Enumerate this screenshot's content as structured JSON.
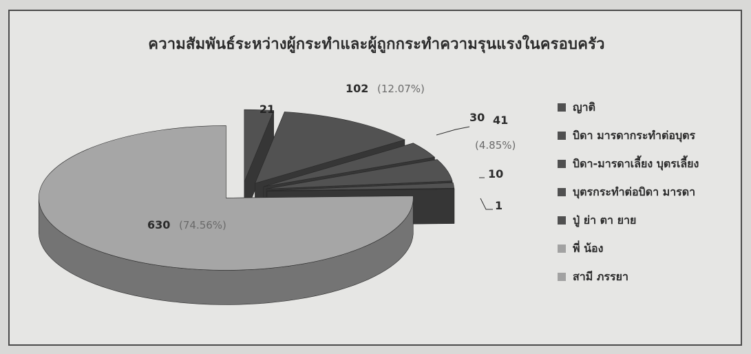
{
  "chart_data": {
    "type": "pie",
    "title": "ความสัมพันธ์ระหว่างผู้กระทำและผู้ถูกกระทำความรุนแรงในครอบครัว",
    "categories": [
      "ญาติ",
      "บิดา มารดากระทำต่อบุตร",
      "บิดา-มารดาเลี้ยง บุตรเลี้ยง",
      "บุตรกระทำต่อบิดา มารดา",
      "ปู่ ย่า ตา ยาย",
      "พี่ น้อง",
      "สามี ภรรยา"
    ],
    "values": [
      21,
      102,
      30,
      41,
      10,
      1,
      630
    ],
    "data_labels": [
      {
        "value": "21",
        "percent": ""
      },
      {
        "value": "102",
        "percent": "(12.07%)"
      },
      {
        "value": "30",
        "percent": ""
      },
      {
        "value": "41",
        "percent": "(4.85%)"
      },
      {
        "value": "10",
        "percent": ""
      },
      {
        "value": "1",
        "percent": ""
      },
      {
        "value": "630",
        "percent": "(74.56%)"
      }
    ],
    "legend_position": "right",
    "exploded": true,
    "style": "3d"
  },
  "colors": {
    "top_light": "#a6a6a6",
    "top_dark": "#525252",
    "side_light": "#747474",
    "side_dark": "#363636",
    "legend_light": "#a2a2a2",
    "legend_dark": "#505050",
    "label_text": "#2b2b2b",
    "percent_text": "#6a6a6a"
  }
}
